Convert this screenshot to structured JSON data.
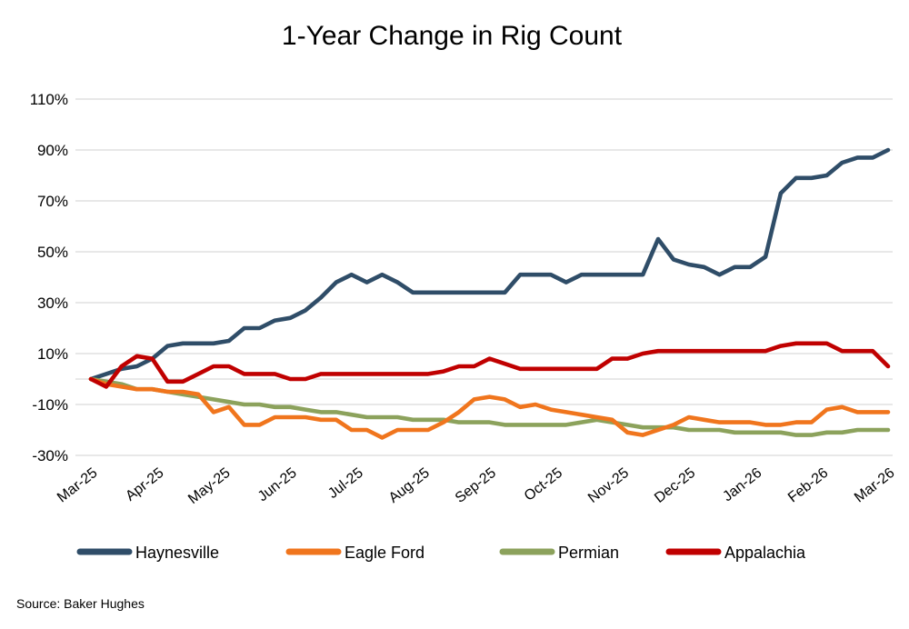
{
  "source": "Source: Baker Hughes",
  "colors": {
    "gridline": "#D9D9D9",
    "text": "#000000",
    "background": "#FFFFFF"
  },
  "chart_data": {
    "type": "line",
    "title": "1-Year Change in Rig Count",
    "xlabel": "",
    "ylabel": "",
    "unit": "percent",
    "ylim": [
      -30,
      110
    ],
    "grid": "horizontal",
    "legend_position": "bottom",
    "x_tick_labels": [
      "Mar-25",
      "Apr-25",
      "May-25",
      "Jun-25",
      "Jul-25",
      "Aug-25",
      "Sep-25",
      "Oct-25",
      "Nov-25",
      "Dec-25",
      "Jan-26",
      "Feb-26",
      "Mar-26"
    ],
    "y_ticks": [
      110,
      90,
      70,
      50,
      30,
      10,
      -10,
      -30
    ],
    "points_per_series": 53,
    "x_resolution": "weekly",
    "draw_order": [
      "Haynesville",
      "Permian",
      "Eagle Ford",
      "Appalachia"
    ],
    "series": [
      {
        "name": "Haynesville",
        "color": "#2F4D68",
        "values": [
          0,
          2,
          4,
          5,
          8,
          13,
          14,
          14,
          14,
          15,
          20,
          20,
          23,
          24,
          27,
          32,
          38,
          41,
          38,
          41,
          38,
          34,
          34,
          34,
          34,
          34,
          34,
          34,
          41,
          41,
          41,
          38,
          41,
          41,
          41,
          41,
          41,
          55,
          47,
          45,
          44,
          41,
          44,
          44,
          48,
          73,
          79,
          79,
          80,
          85,
          87,
          87,
          90
        ]
      },
      {
        "name": "Eagle Ford",
        "color": "#F0751D",
        "values": [
          0,
          -2,
          -3,
          -4,
          -4,
          -5,
          -5,
          -6,
          -13,
          -11,
          -18,
          -18,
          -15,
          -15,
          -15,
          -16,
          -16,
          -20,
          -20,
          -23,
          -20,
          -20,
          -20,
          -17,
          -13,
          -8,
          -7,
          -8,
          -11,
          -10,
          -12,
          -13,
          -14,
          -15,
          -16,
          -21,
          -22,
          -20,
          -18,
          -15,
          -16,
          -17,
          -17,
          -17,
          -18,
          -18,
          -17,
          -17,
          -12,
          -11,
          -13,
          -13,
          -13
        ]
      },
      {
        "name": "Permian",
        "color": "#8CA25C",
        "values": [
          0,
          -1,
          -2,
          -4,
          -4,
          -5,
          -6,
          -7,
          -8,
          -9,
          -10,
          -10,
          -11,
          -11,
          -12,
          -13,
          -13,
          -14,
          -15,
          -15,
          -15,
          -16,
          -16,
          -16,
          -17,
          -17,
          -17,
          -18,
          -18,
          -18,
          -18,
          -18,
          -17,
          -16,
          -17,
          -18,
          -19,
          -19,
          -19,
          -20,
          -20,
          -20,
          -21,
          -21,
          -21,
          -21,
          -22,
          -22,
          -21,
          -21,
          -20,
          -20,
          -20
        ]
      },
      {
        "name": "Appalachia",
        "color": "#C00000",
        "values": [
          0,
          -3,
          5,
          9,
          8,
          -1,
          -1,
          2,
          5,
          5,
          2,
          2,
          2,
          0,
          0,
          2,
          2,
          2,
          2,
          2,
          2,
          2,
          2,
          3,
          5,
          5,
          8,
          6,
          4,
          4,
          4,
          4,
          4,
          4,
          8,
          8,
          10,
          11,
          11,
          11,
          11,
          11,
          11,
          11,
          11,
          13,
          14,
          14,
          14,
          11,
          11,
          11,
          5
        ]
      }
    ]
  }
}
